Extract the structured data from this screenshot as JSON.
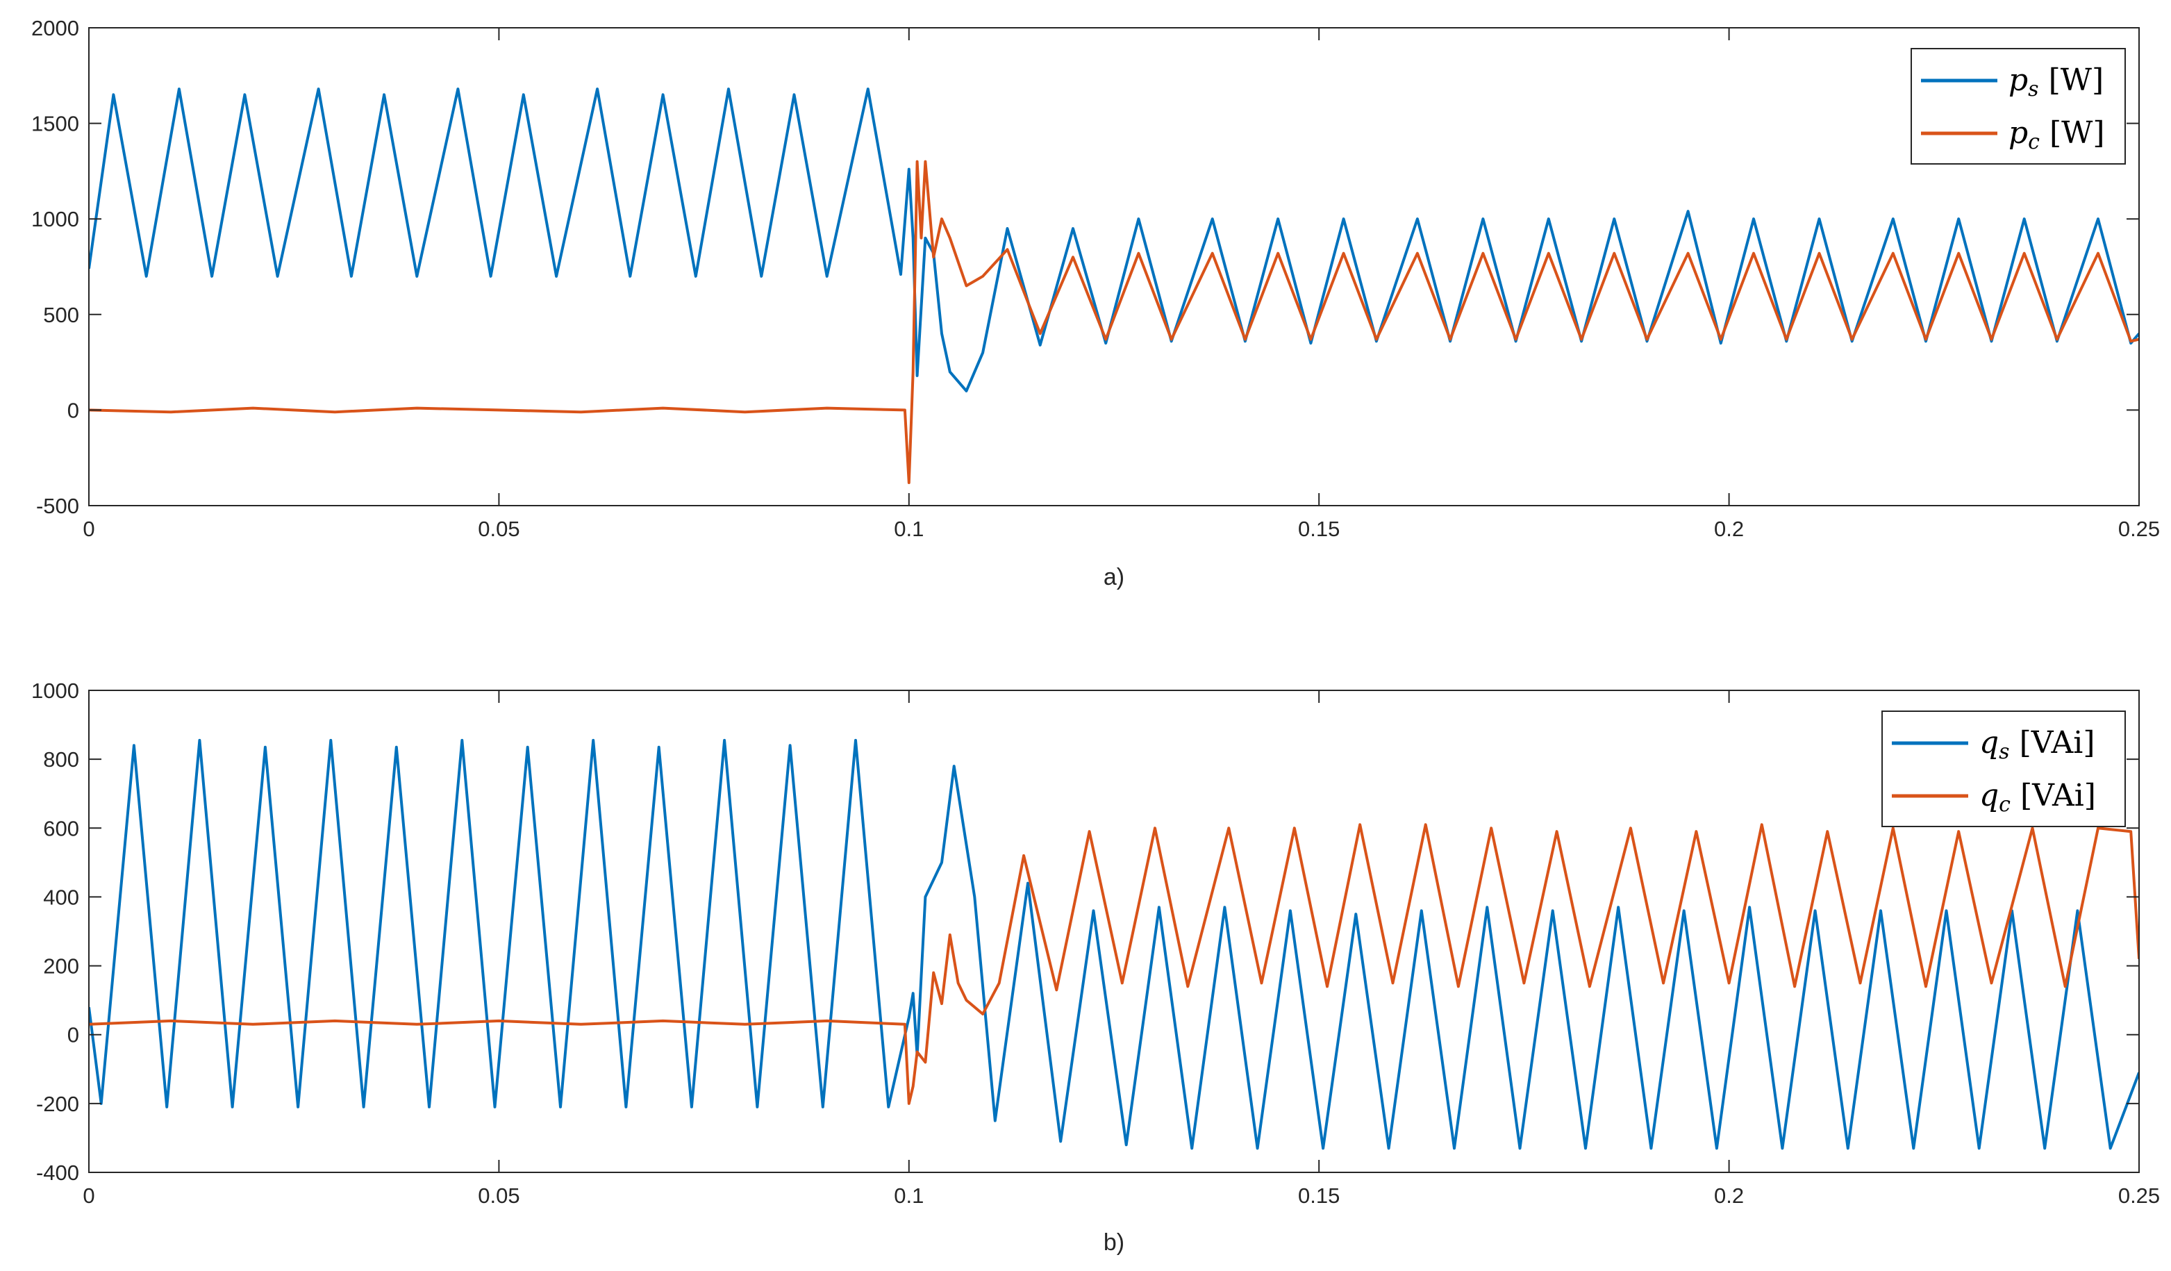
{
  "colors": {
    "series_s": "#0072BD",
    "series_c": "#D95319",
    "axis": "#262626"
  },
  "chart_data": [
    {
      "type": "line",
      "caption": "a)",
      "xlim": [
        0,
        0.25
      ],
      "ylim": [
        -500,
        2000
      ],
      "x_ticks": [
        "0",
        "0.05",
        "0.1",
        "0.15",
        "0.2",
        "0.25"
      ],
      "y_ticks": [
        "-500",
        "0",
        "500",
        "1000",
        "1500",
        "2000"
      ],
      "legend_position": "top-right",
      "series": [
        {
          "name": "p_s [W]",
          "symbol": "p",
          "sub": "s",
          "unit": "[W]",
          "color": "#0072BD",
          "x": [
            0,
            0.003,
            0.007,
            0.011,
            0.015,
            0.019,
            0.023,
            0.028,
            0.032,
            0.036,
            0.04,
            0.045,
            0.049,
            0.053,
            0.057,
            0.062,
            0.066,
            0.07,
            0.074,
            0.078,
            0.082,
            0.086,
            0.09,
            0.095,
            0.099,
            0.1,
            0.1005,
            0.101,
            0.102,
            0.103,
            0.104,
            0.105,
            0.107,
            0.109,
            0.112,
            0.116,
            0.12,
            0.124,
            0.128,
            0.132,
            0.137,
            0.141,
            0.145,
            0.149,
            0.153,
            0.157,
            0.162,
            0.166,
            0.17,
            0.174,
            0.178,
            0.182,
            0.186,
            0.19,
            0.195,
            0.199,
            0.203,
            0.207,
            0.211,
            0.215,
            0.22,
            0.224,
            0.228,
            0.232,
            0.236,
            0.24,
            0.245,
            0.249,
            0.25
          ],
          "y": [
            740,
            1650,
            700,
            1680,
            700,
            1650,
            700,
            1680,
            700,
            1650,
            700,
            1680,
            700,
            1650,
            700,
            1680,
            700,
            1650,
            700,
            1680,
            700,
            1650,
            700,
            1680,
            710,
            1260,
            900,
            180,
            900,
            820,
            400,
            200,
            100,
            300,
            950,
            340,
            950,
            350,
            1000,
            360,
            1000,
            360,
            1000,
            350,
            1000,
            360,
            1000,
            360,
            1000,
            360,
            1000,
            360,
            1000,
            360,
            1040,
            350,
            1000,
            360,
            1000,
            360,
            1000,
            360,
            1000,
            360,
            1000,
            360,
            1000,
            350,
            400
          ]
        },
        {
          "name": "p_c [W]",
          "symbol": "p",
          "sub": "c",
          "unit": "[W]",
          "color": "#D95319",
          "x": [
            0,
            0.01,
            0.02,
            0.03,
            0.04,
            0.05,
            0.06,
            0.07,
            0.08,
            0.09,
            0.0995,
            0.1,
            0.1005,
            0.101,
            0.1015,
            0.102,
            0.103,
            0.104,
            0.105,
            0.107,
            0.109,
            0.112,
            0.116,
            0.12,
            0.124,
            0.128,
            0.132,
            0.137,
            0.141,
            0.145,
            0.149,
            0.153,
            0.157,
            0.162,
            0.166,
            0.17,
            0.174,
            0.178,
            0.182,
            0.186,
            0.19,
            0.195,
            0.199,
            0.203,
            0.207,
            0.211,
            0.215,
            0.22,
            0.224,
            0.228,
            0.232,
            0.236,
            0.24,
            0.245,
            0.249,
            0.25
          ],
          "y": [
            0,
            -10,
            10,
            -10,
            10,
            0,
            -10,
            10,
            -10,
            10,
            0,
            -380,
            200,
            1300,
            900,
            1300,
            800,
            1000,
            900,
            650,
            700,
            840,
            400,
            800,
            370,
            820,
            370,
            820,
            370,
            820,
            370,
            820,
            370,
            820,
            370,
            820,
            370,
            820,
            370,
            820,
            370,
            820,
            370,
            820,
            370,
            820,
            370,
            820,
            370,
            820,
            370,
            820,
            370,
            820,
            360,
            370
          ]
        }
      ]
    },
    {
      "type": "line",
      "caption": "b)",
      "xlim": [
        0,
        0.25
      ],
      "ylim": [
        -400,
        1000
      ],
      "x_ticks": [
        "0",
        "0.05",
        "0.1",
        "0.15",
        "0.2",
        "0.25"
      ],
      "y_ticks": [
        "-400",
        "-200",
        "0",
        "200",
        "400",
        "600",
        "800",
        "1000"
      ],
      "legend_position": "top-right",
      "series": [
        {
          "name": "q_s [VAi]",
          "symbol": "q",
          "sub": "s",
          "unit": "[VAi]",
          "color": "#0072BD",
          "x": [
            0,
            0.0015,
            0.0055,
            0.0095,
            0.0135,
            0.0175,
            0.0215,
            0.0255,
            0.0295,
            0.0335,
            0.0375,
            0.0415,
            0.0455,
            0.0495,
            0.0535,
            0.0575,
            0.0615,
            0.0655,
            0.0695,
            0.0735,
            0.0775,
            0.0815,
            0.0855,
            0.0895,
            0.0935,
            0.0975,
            0.1,
            0.1005,
            0.101,
            0.102,
            0.104,
            0.1055,
            0.108,
            0.1105,
            0.1145,
            0.1185,
            0.1225,
            0.1265,
            0.1305,
            0.1345,
            0.1385,
            0.1425,
            0.1465,
            0.1505,
            0.1545,
            0.1585,
            0.1625,
            0.1665,
            0.1705,
            0.1745,
            0.1785,
            0.1825,
            0.1865,
            0.1905,
            0.1945,
            0.1985,
            0.2025,
            0.2065,
            0.2105,
            0.2145,
            0.2185,
            0.2225,
            0.2265,
            0.2305,
            0.2345,
            0.2385,
            0.2425,
            0.2465,
            0.25
          ],
          "y": [
            80,
            -200,
            840,
            -210,
            855,
            -210,
            835,
            -210,
            855,
            -210,
            835,
            -210,
            855,
            -210,
            835,
            -210,
            855,
            -210,
            835,
            -210,
            855,
            -210,
            840,
            -210,
            855,
            -210,
            50,
            120,
            -60,
            400,
            500,
            780,
            400,
            -250,
            440,
            -310,
            360,
            -320,
            370,
            -330,
            370,
            -330,
            360,
            -330,
            350,
            -330,
            360,
            -330,
            370,
            -330,
            360,
            -330,
            370,
            -330,
            360,
            -330,
            370,
            -330,
            360,
            -330,
            360,
            -330,
            360,
            -330,
            360,
            -330,
            360,
            -330,
            -110
          ]
        },
        {
          "name": "q_c [VAi]",
          "symbol": "q",
          "sub": "c",
          "unit": "[VAi]",
          "color": "#D95319",
          "x": [
            0,
            0.01,
            0.02,
            0.03,
            0.04,
            0.05,
            0.06,
            0.07,
            0.08,
            0.09,
            0.0995,
            0.1,
            0.1005,
            0.101,
            0.102,
            0.103,
            0.104,
            0.105,
            0.106,
            0.107,
            0.109,
            0.111,
            0.114,
            0.118,
            0.122,
            0.126,
            0.13,
            0.134,
            0.139,
            0.143,
            0.147,
            0.151,
            0.155,
            0.159,
            0.163,
            0.167,
            0.171,
            0.175,
            0.179,
            0.183,
            0.188,
            0.192,
            0.196,
            0.2,
            0.204,
            0.208,
            0.212,
            0.216,
            0.22,
            0.224,
            0.228,
            0.232,
            0.237,
            0.241,
            0.245,
            0.249,
            0.25
          ],
          "y": [
            30,
            40,
            30,
            40,
            30,
            40,
            30,
            40,
            30,
            40,
            30,
            -200,
            -150,
            -50,
            -80,
            180,
            90,
            290,
            150,
            100,
            60,
            150,
            520,
            130,
            590,
            150,
            600,
            140,
            600,
            150,
            600,
            140,
            610,
            150,
            610,
            140,
            600,
            150,
            590,
            140,
            600,
            150,
            590,
            150,
            610,
            140,
            590,
            150,
            600,
            140,
            590,
            150,
            600,
            140,
            600,
            590,
            220
          ]
        }
      ]
    }
  ]
}
